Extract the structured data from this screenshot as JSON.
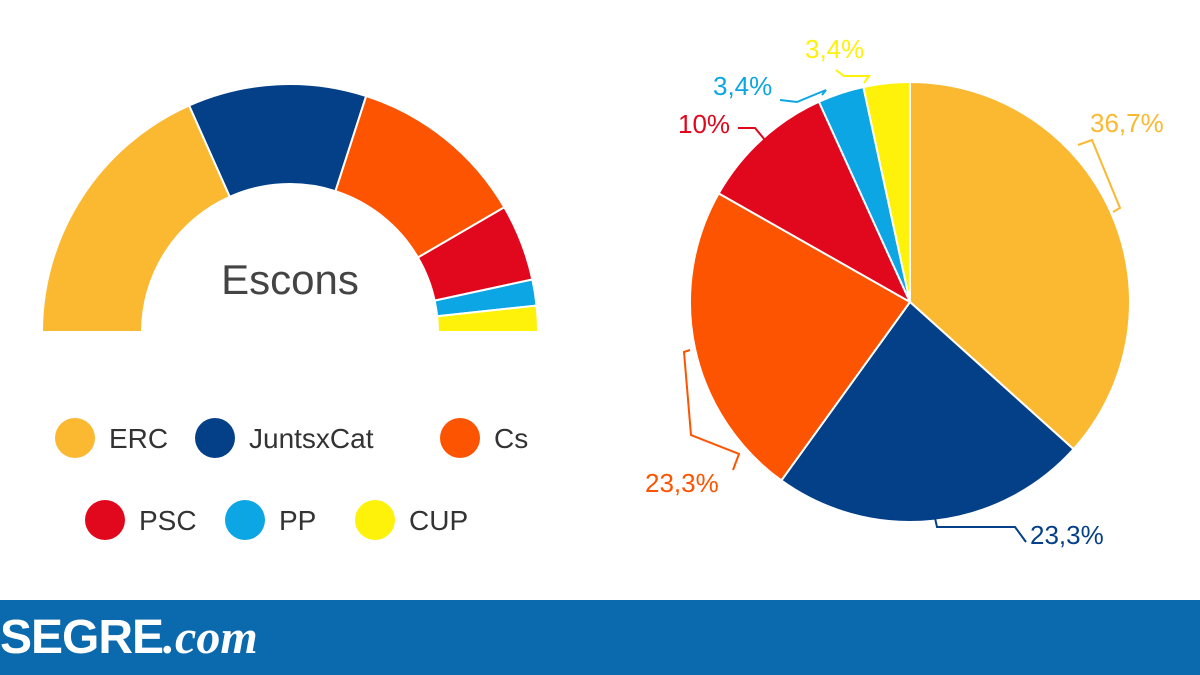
{
  "colors": {
    "ERC": "#fbb831",
    "JuntsxCat": "#044088",
    "Cs": "#fc5400",
    "PSC": "#e1071c",
    "PP": "#0ba6e3",
    "CUP": "#fef10a",
    "footer": "#0b6aae"
  },
  "chart_data": [
    {
      "type": "pie",
      "variant": "semicircle-donut",
      "center_label": "Escons",
      "categories": [
        "ERC",
        "JuntsxCat",
        "Cs",
        "PSC",
        "PP",
        "CUP"
      ],
      "values": [
        36.7,
        23.3,
        23.3,
        10,
        3.4,
        3.4
      ],
      "legend_placement": "bottom"
    },
    {
      "type": "pie",
      "categories": [
        "ERC",
        "JuntsxCat",
        "Cs",
        "PSC",
        "PP",
        "CUP"
      ],
      "values": [
        36.7,
        23.3,
        23.3,
        10,
        3.4,
        3.4
      ],
      "labels": [
        "36,7%",
        "23,3%",
        "23,3%",
        "10%",
        "3,4%",
        "3,4%"
      ]
    }
  ],
  "legend": {
    "items": [
      "ERC",
      "JuntsxCat",
      "Cs",
      "PSC",
      "PP",
      "CUP"
    ]
  },
  "footer": {
    "brand_main": "SEGRE",
    "brand_suffix": ".com"
  }
}
